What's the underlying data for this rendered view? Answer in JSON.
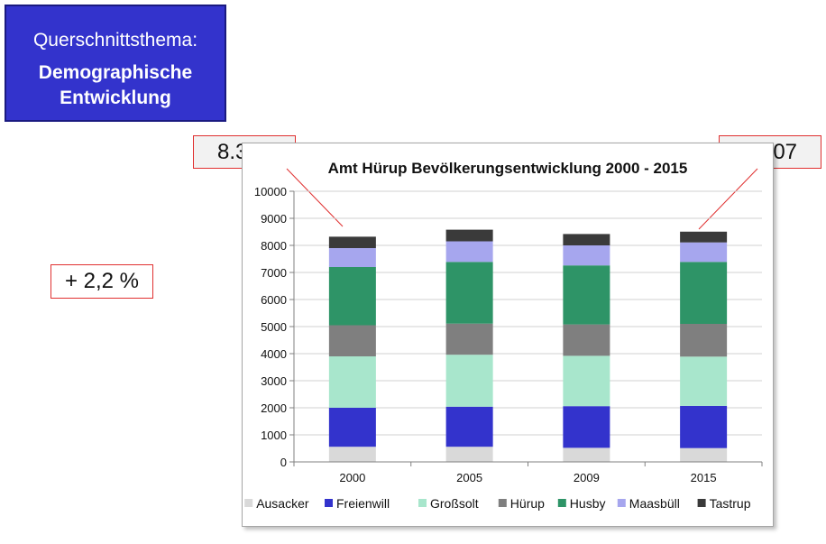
{
  "topic": {
    "label": "Querschnittsthema:",
    "title_line1": "Demographische",
    "title_line2": "Entwicklung"
  },
  "callouts": {
    "total_2000": "8.321",
    "total_2015": "8.507",
    "change": "+ 2,2 %"
  },
  "colors": {
    "topic_box": "#3333cc",
    "callout_border": "#e03030",
    "Ausacker": "#d9d9d9",
    "Freienwill": "#3333cc",
    "Großsolt": "#a8e6cc",
    "Hürup": "#7f7f7f",
    "Husby": "#2e9467",
    "Maasbüll": "#a6a6ee",
    "Tastrup": "#3a3a3a"
  },
  "chart_data": {
    "type": "bar",
    "stacked": true,
    "title": "Amt Hürup Bevölkerungsentwicklung 2000 - 2015",
    "categories": [
      "2000",
      "2005",
      "2009",
      "2015"
    ],
    "ylim": [
      0,
      10000
    ],
    "yticks": [
      "0",
      "1000",
      "2000",
      "3000",
      "4000",
      "5000",
      "6000",
      "7000",
      "8000",
      "9000",
      "10000"
    ],
    "grid": true,
    "legend_position": "bottom",
    "series": [
      {
        "name": "Ausacker",
        "values": [
          560,
          560,
          520,
          510
        ]
      },
      {
        "name": "Freienwill",
        "values": [
          1440,
          1480,
          1540,
          1560
        ]
      },
      {
        "name": "Großsolt",
        "values": [
          1900,
          1920,
          1860,
          1820
        ]
      },
      {
        "name": "Hürup",
        "values": [
          1150,
          1150,
          1160,
          1210
        ]
      },
      {
        "name": "Husby",
        "values": [
          2150,
          2280,
          2180,
          2290
        ]
      },
      {
        "name": "Maasbüll",
        "values": [
          700,
          760,
          740,
          720
        ]
      },
      {
        "name": "Tastrup",
        "values": [
          421,
          430,
          420,
          397
        ]
      }
    ]
  }
}
